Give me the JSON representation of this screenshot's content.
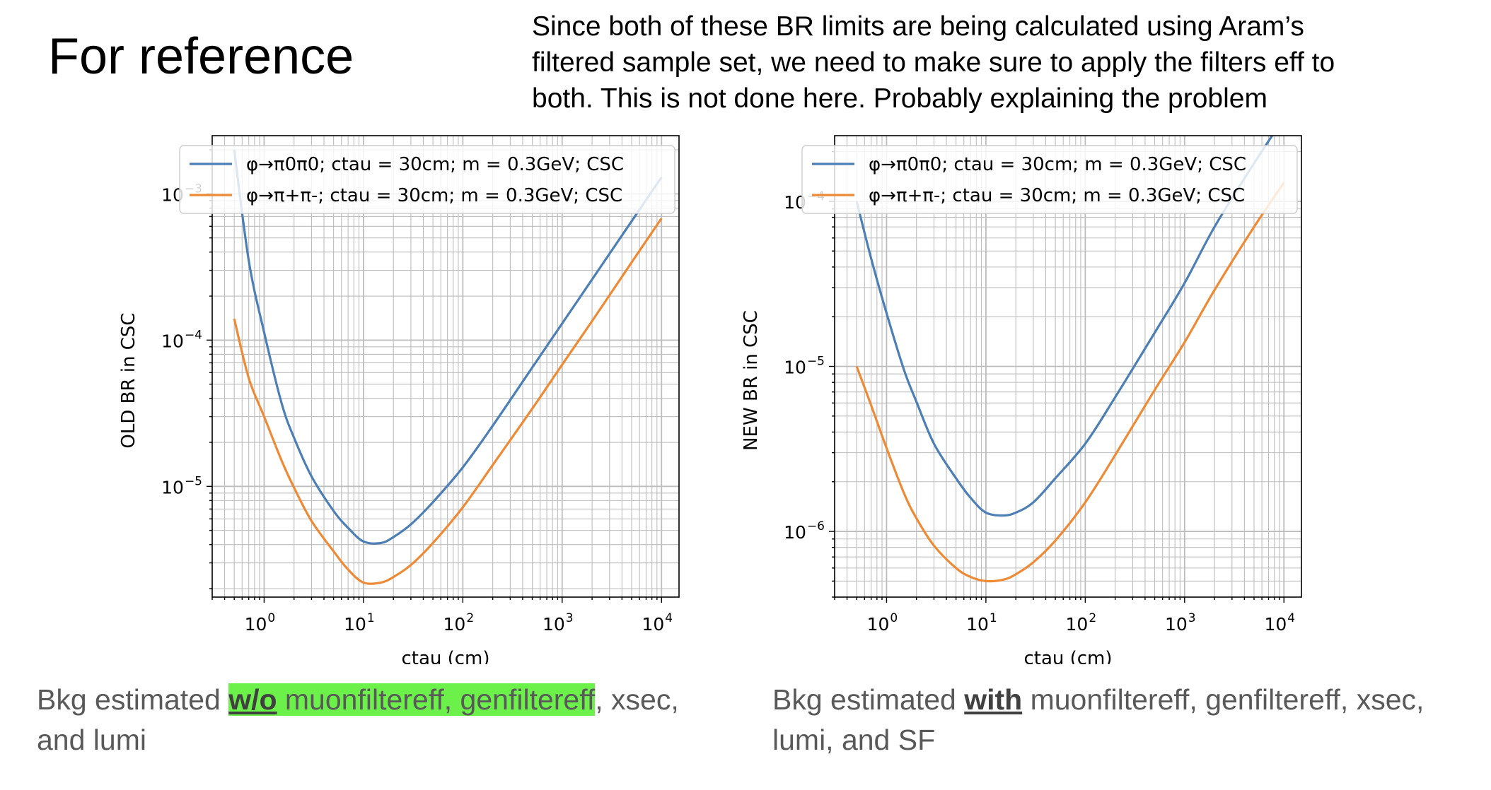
{
  "slide": {
    "title": "For reference",
    "note_lines": [
      "Since both of these BR limits are being calculated using Aram’s",
      "filtered sample set, we need to make sure to apply the filters eff to",
      "both. This is not done here. Probably explaining the problem"
    ],
    "captions": [
      {
        "prefix": "Bkg estimated ",
        "bold": "w/o",
        "highlight_rest": " muonfiltereff, genfiltereff",
        "after": ", xsec,",
        "line2": "and lumi"
      },
      {
        "prefix": "Bkg estimated ",
        "bold": "with",
        "after": " muonfiltereff, genfiltereff, xsec,",
        "line2": "lumi, and SF"
      }
    ]
  },
  "colors": {
    "blue": "#4c7fb5",
    "orange": "#ee8a35",
    "highlight": "#6cf04a"
  },
  "chart_data": [
    {
      "type": "line",
      "xlabel": "ctau (cm)",
      "ylabel": "OLD BR in CSC",
      "xscale": "log",
      "yscale": "log",
      "xlim": [
        0.3,
        15000
      ],
      "ylim": [
        1.75e-06,
        0.0025
      ],
      "xticks": [
        1,
        10,
        100,
        1000,
        10000
      ],
      "xtick_labels": [
        {
          "base": "10",
          "exp": "0"
        },
        {
          "base": "10",
          "exp": "1"
        },
        {
          "base": "10",
          "exp": "2"
        },
        {
          "base": "10",
          "exp": "3"
        },
        {
          "base": "10",
          "exp": "4"
        }
      ],
      "yticks": [
        1e-05,
        0.0001,
        0.001
      ],
      "ytick_labels": [
        {
          "base": "10",
          "exp": "−5"
        },
        {
          "base": "10",
          "exp": "−4"
        },
        {
          "base": "10",
          "exp": "−3"
        }
      ],
      "grid": true,
      "legend": "top",
      "series": [
        {
          "name": "φ→π0π0; ctau = 30cm; m = 0.3GeV; CSC",
          "color": "#4c7fb5",
          "x": [
            0.5,
            0.7,
            1,
            1.5,
            2,
            3,
            5,
            7,
            10,
            15,
            20,
            30,
            50,
            100,
            200,
            500,
            1000,
            2000,
            5000,
            10000
          ],
          "y": [
            0.002,
            0.00035,
            0.000113,
            3.7e-05,
            2.15e-05,
            1.17e-05,
            6.8e-06,
            5.2e-06,
            4.2e-06,
            4.1e-06,
            4.5e-06,
            5.5e-06,
            7.8e-06,
            1.35e-05,
            2.6e-05,
            6.5e-05,
            0.00013,
            0.00026,
            0.00065,
            0.0013
          ]
        },
        {
          "name": "φ→π+π-; ctau = 30cm; m = 0.3GeV; CSC",
          "color": "#ee8a35",
          "x": [
            0.5,
            0.7,
            1,
            1.5,
            2,
            3,
            5,
            7,
            10,
            15,
            20,
            30,
            50,
            100,
            200,
            500,
            1000,
            2000,
            5000,
            10000
          ],
          "y": [
            0.00014,
            5.5e-05,
            3e-05,
            1.5e-05,
            9.8e-06,
            5.8e-06,
            3.6e-06,
            2.7e-06,
            2.2e-06,
            2.2e-06,
            2.4e-06,
            2.9e-06,
            4.1e-06,
            7.2e-06,
            1.4e-05,
            3.4e-05,
            6.8e-05,
            0.000135,
            0.00034,
            0.00068
          ]
        }
      ]
    },
    {
      "type": "line",
      "xlabel": "ctau (cm)",
      "ylabel": "NEW BR in CSC",
      "xscale": "log",
      "yscale": "log",
      "xlim": [
        0.3,
        15000
      ],
      "ylim": [
        4e-07,
        0.00025
      ],
      "xticks": [
        1,
        10,
        100,
        1000,
        10000
      ],
      "xtick_labels": [
        {
          "base": "10",
          "exp": "0"
        },
        {
          "base": "10",
          "exp": "1"
        },
        {
          "base": "10",
          "exp": "2"
        },
        {
          "base": "10",
          "exp": "3"
        },
        {
          "base": "10",
          "exp": "4"
        }
      ],
      "yticks": [
        1e-06,
        1e-05,
        0.0001
      ],
      "ytick_labels": [
        {
          "base": "10",
          "exp": "−6"
        },
        {
          "base": "10",
          "exp": "−5"
        },
        {
          "base": "10",
          "exp": "−4"
        }
      ],
      "grid": true,
      "legend": "top",
      "series": [
        {
          "name": "φ→π0π0; ctau = 30cm; m = 0.3GeV; CSC",
          "color": "#4c7fb5",
          "x": [
            0.5,
            0.7,
            1,
            1.5,
            2,
            3,
            5,
            7,
            10,
            15,
            20,
            30,
            50,
            100,
            200,
            500,
            1000,
            2000,
            5000,
            10000
          ],
          "y": [
            0.0001,
            4.5e-05,
            2.1e-05,
            9.5e-06,
            6.1e-06,
            3.4e-06,
            2.1e-06,
            1.6e-06,
            1.3e-06,
            1.25e-06,
            1.3e-06,
            1.5e-06,
            2.1e-06,
            3.4e-06,
            6.5e-06,
            1.6e-05,
            3.2e-05,
            7e-05,
            0.00017,
            0.00032
          ]
        },
        {
          "name": "φ→π+π-; ctau = 30cm; m = 0.3GeV; CSC",
          "color": "#ee8a35",
          "x": [
            0.5,
            0.7,
            1,
            1.5,
            2,
            3,
            5,
            7,
            10,
            15,
            20,
            30,
            50,
            100,
            200,
            500,
            1000,
            2000,
            5000,
            10000
          ],
          "y": [
            1e-05,
            5.8e-06,
            3.2e-06,
            1.7e-06,
            1.2e-06,
            8.2e-07,
            6e-07,
            5.3e-07,
            5e-07,
            5.1e-07,
            5.5e-07,
            6.5e-07,
            8.8e-07,
            1.5e-06,
            2.9e-06,
            7.2e-06,
            1.4e-05,
            2.9e-05,
            7e-05,
            0.00013
          ]
        }
      ]
    }
  ]
}
